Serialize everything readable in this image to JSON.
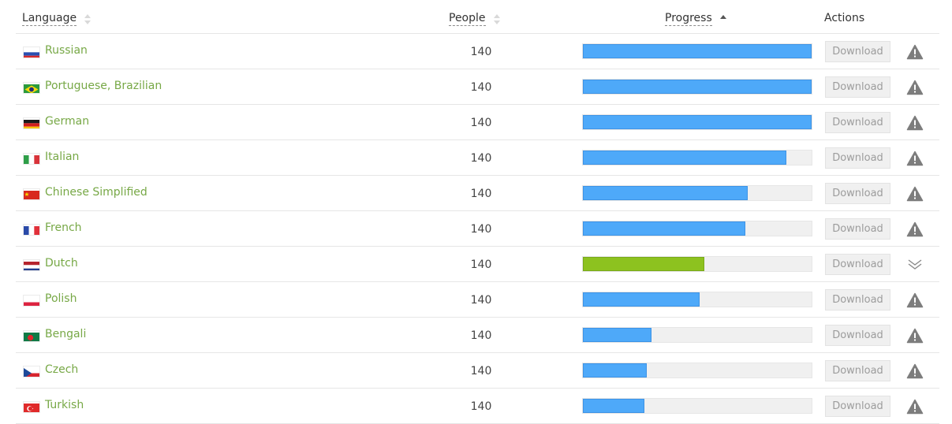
{
  "header": {
    "language": "Language",
    "people": "People",
    "progress": "Progress",
    "actions": "Actions"
  },
  "colors": {
    "link": "#77a846",
    "bar_blue": "#4ea9f9",
    "bar_green": "#8dc21f"
  },
  "rows": [
    {
      "flag": "russia",
      "language": "Russian",
      "people": "140",
      "progress": 1.0,
      "bar": "blue",
      "download": "Download",
      "action_icon": "warning-icon"
    },
    {
      "flag": "brazil",
      "language": "Portuguese, Brazilian",
      "people": "140",
      "progress": 1.0,
      "bar": "blue",
      "download": "Download",
      "action_icon": "warning-icon"
    },
    {
      "flag": "germany",
      "language": "German",
      "people": "140",
      "progress": 1.0,
      "bar": "blue",
      "download": "Download",
      "action_icon": "warning-icon"
    },
    {
      "flag": "italy",
      "language": "Italian",
      "people": "140",
      "progress": 0.89,
      "bar": "blue",
      "download": "Download",
      "action_icon": "warning-icon"
    },
    {
      "flag": "china",
      "language": "Chinese Simplified",
      "people": "140",
      "progress": 0.72,
      "bar": "blue",
      "download": "Download",
      "action_icon": "warning-icon"
    },
    {
      "flag": "france",
      "language": "French",
      "people": "140",
      "progress": 0.71,
      "bar": "blue",
      "download": "Download",
      "action_icon": "warning-icon"
    },
    {
      "flag": "netherlands",
      "language": "Dutch",
      "people": "140",
      "progress": 0.53,
      "bar": "green",
      "download": "Download",
      "action_icon": "double-chevron-down-icon"
    },
    {
      "flag": "poland",
      "language": "Polish",
      "people": "140",
      "progress": 0.51,
      "bar": "blue",
      "download": "Download",
      "action_icon": "warning-icon"
    },
    {
      "flag": "bangladesh",
      "language": "Bengali",
      "people": "140",
      "progress": 0.3,
      "bar": "blue",
      "download": "Download",
      "action_icon": "warning-icon"
    },
    {
      "flag": "czech",
      "language": "Czech",
      "people": "140",
      "progress": 0.28,
      "bar": "blue",
      "download": "Download",
      "action_icon": "warning-icon"
    },
    {
      "flag": "turkey",
      "language": "Turkish",
      "people": "140",
      "progress": 0.27,
      "bar": "blue",
      "download": "Download",
      "action_icon": "warning-icon"
    }
  ]
}
